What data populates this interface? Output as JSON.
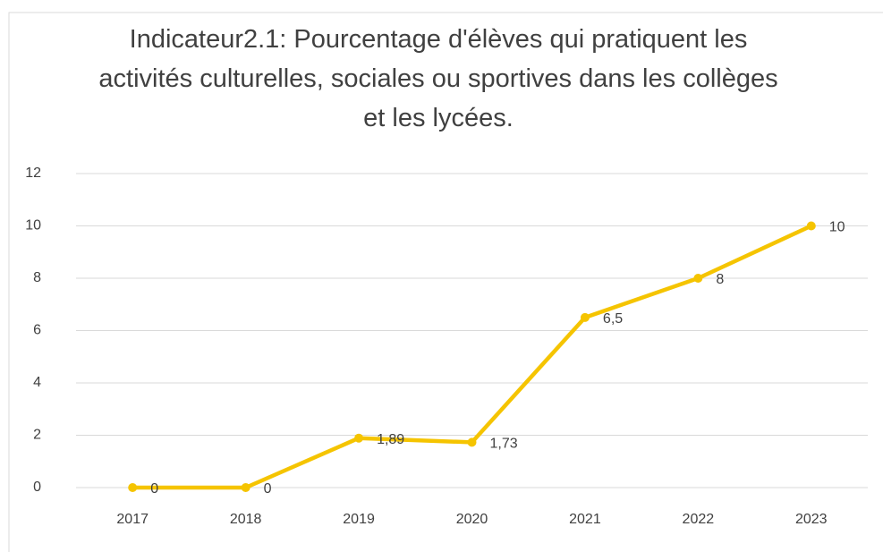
{
  "chart_data": {
    "type": "line",
    "title": "Indicateur2.1: Pourcentage d'élèves qui pratiquent les activités culturelles, sociales ou sportives dans les collèges et les lycées.",
    "categories": [
      "2017",
      "2018",
      "2019",
      "2020",
      "2021",
      "2022",
      "2023"
    ],
    "values": [
      0,
      0,
      1.89,
      1.73,
      6.5,
      8,
      10
    ],
    "value_labels": [
      "0",
      "0",
      "1,89",
      "1,73",
      "6,5",
      "8",
      "10"
    ],
    "color": "#f5c400",
    "ylim": [
      0,
      12
    ],
    "yticks": [
      0,
      2,
      4,
      6,
      8,
      10,
      12
    ],
    "grid": true
  }
}
